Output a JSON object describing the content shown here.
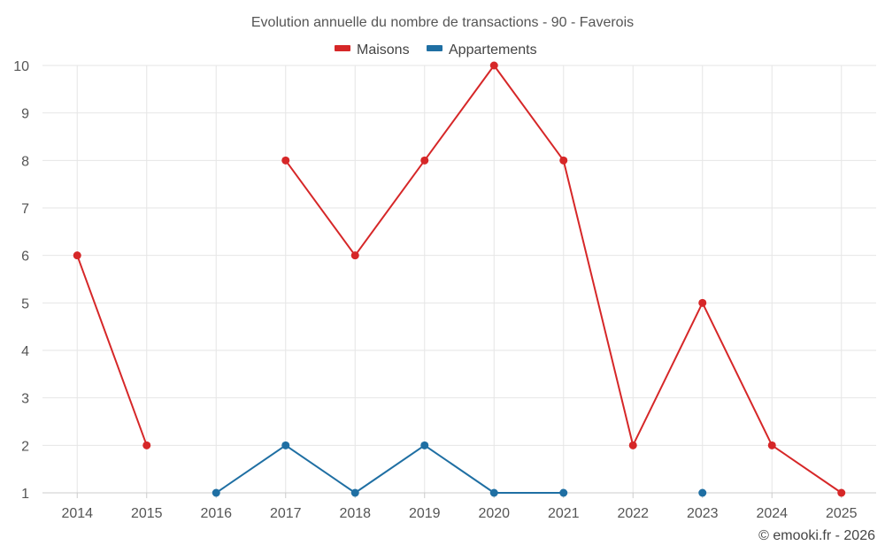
{
  "chart_data": {
    "type": "line",
    "title": "Evolution annuelle du nombre de transactions - 90 - Faverois",
    "xlabel": "",
    "ylabel": "",
    "categories": [
      "2014",
      "2015",
      "2016",
      "2017",
      "2018",
      "2019",
      "2020",
      "2021",
      "2022",
      "2023",
      "2024",
      "2025"
    ],
    "yticks": [
      "1",
      "2",
      "3",
      "4",
      "5",
      "6",
      "7",
      "8",
      "9",
      "10"
    ],
    "ylim": [
      1,
      10
    ],
    "grid": true,
    "legend_position": "top-center",
    "series": [
      {
        "name": "Maisons",
        "color": "#d62728",
        "values": [
          6,
          2,
          null,
          8,
          6,
          8,
          10,
          8,
          2,
          5,
          2,
          1
        ]
      },
      {
        "name": "Appartements",
        "color": "#1f6fa3",
        "values": [
          null,
          null,
          1,
          2,
          1,
          2,
          1,
          1,
          null,
          1,
          null,
          null
        ]
      }
    ],
    "credit": "© emooki.fr - 2026"
  }
}
